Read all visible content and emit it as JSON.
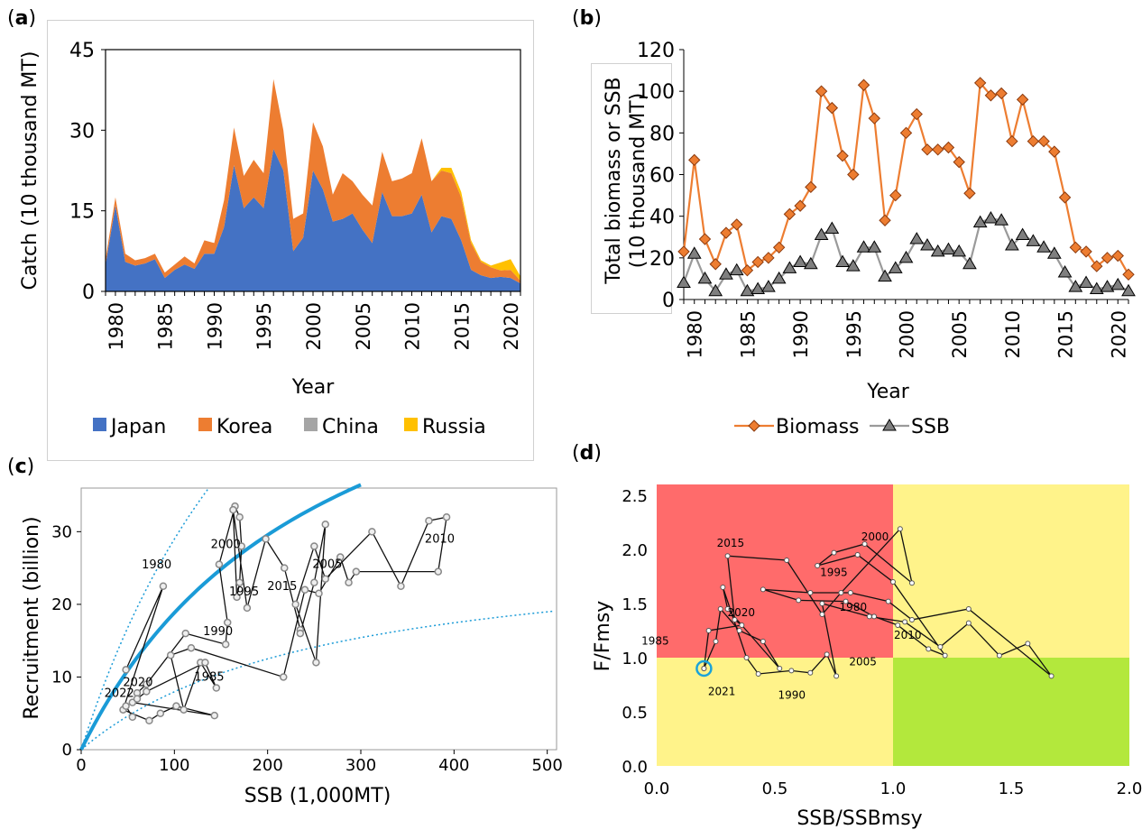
{
  "panels": {
    "a": {
      "label": "a"
    },
    "b": {
      "label": "b"
    },
    "c": {
      "label": "c"
    },
    "d": {
      "label": "d"
    }
  },
  "chart_data": [
    {
      "id": "a",
      "type": "area",
      "stacked": true,
      "xlabel": "Year",
      "ylabel": "Catch (10 thousand MT)",
      "ylim": [
        0,
        45
      ],
      "yticks": [
        0,
        15,
        30,
        45
      ],
      "xticks": [
        1980,
        1985,
        1990,
        1995,
        2000,
        2005,
        2010,
        2015,
        2020
      ],
      "legend_position": "bottom",
      "x": [
        1979,
        1980,
        1981,
        1982,
        1983,
        1984,
        1985,
        1986,
        1987,
        1988,
        1989,
        1990,
        1991,
        1992,
        1993,
        1994,
        1995,
        1996,
        1997,
        1998,
        1999,
        2000,
        2001,
        2002,
        2003,
        2004,
        2005,
        2006,
        2007,
        2008,
        2009,
        2010,
        2011,
        2012,
        2013,
        2014,
        2015,
        2016,
        2017,
        2018,
        2019,
        2020,
        2021
      ],
      "series": [
        {
          "name": "Japan",
          "color": "#4472C4",
          "values": [
            5,
            16,
            5.5,
            4.8,
            5.2,
            6,
            2.5,
            4,
            5,
            4.2,
            7,
            7,
            12,
            23.5,
            15.5,
            17.5,
            15.5,
            26.5,
            22.5,
            7.5,
            10,
            22.5,
            19,
            13,
            13.5,
            14.5,
            11.5,
            9,
            18.5,
            14,
            14,
            14.5,
            18,
            11,
            14,
            13.5,
            9.5,
            4,
            3,
            2.5,
            2.7,
            2.5,
            1.5
          ]
        },
        {
          "name": "Korea",
          "color": "#ED7D31",
          "values": [
            1,
            1.5,
            1.5,
            1,
            1,
            1,
            1,
            1,
            1.5,
            1,
            2.5,
            2,
            5,
            7,
            6,
            7,
            6.5,
            13,
            7.5,
            6,
            4.5,
            9,
            8,
            5,
            8.5,
            6,
            6.5,
            7,
            7.5,
            6.5,
            7,
            7.5,
            10.5,
            9.5,
            8.5,
            8.5,
            8,
            5,
            2.5,
            2,
            1.2,
            1.5,
            0.5
          ]
        },
        {
          "name": "China",
          "color": "#A5A5A5",
          "values": [
            0,
            0,
            0,
            0,
            0,
            0,
            0,
            0,
            0,
            0,
            0,
            0,
            0,
            0,
            0,
            0,
            0,
            0,
            0,
            0,
            0,
            0,
            0,
            0,
            0,
            0,
            0,
            0,
            0,
            0,
            0,
            0,
            0,
            0,
            0,
            0,
            0,
            0,
            0,
            0,
            0,
            0,
            0
          ]
        },
        {
          "name": "Russia",
          "color": "#FFC000",
          "values": [
            0,
            0,
            0,
            0,
            0,
            0,
            0,
            0,
            0,
            0,
            0,
            0,
            0,
            0,
            0,
            0,
            0,
            0,
            0,
            0,
            0,
            0,
            0,
            0,
            0,
            0,
            0,
            0,
            0,
            0,
            0,
            0,
            0,
            0,
            0.5,
            1,
            1,
            0.5,
            0.3,
            0.3,
            1.5,
            2,
            0.8
          ]
        }
      ]
    },
    {
      "id": "b",
      "type": "line",
      "xlabel": "Year",
      "ylabel": "Total biomass or SSB (10 thousand MT)",
      "ylim": [
        0,
        120
      ],
      "yticks": [
        0,
        20,
        40,
        60,
        80,
        100,
        120
      ],
      "xticks": [
        1980,
        1985,
        1990,
        1995,
        2000,
        2005,
        2010,
        2015,
        2020
      ],
      "legend_position": "bottom",
      "x": [
        1979,
        1980,
        1981,
        1982,
        1983,
        1984,
        1985,
        1986,
        1987,
        1988,
        1989,
        1990,
        1991,
        1992,
        1993,
        1994,
        1995,
        1996,
        1997,
        1998,
        1999,
        2000,
        2001,
        2002,
        2003,
        2004,
        2005,
        2006,
        2007,
        2008,
        2009,
        2010,
        2011,
        2012,
        2013,
        2014,
        2015,
        2016,
        2017,
        2018,
        2019,
        2020,
        2021
      ],
      "series": [
        {
          "name": "Biomass",
          "color": "#ED7D31",
          "marker": "diamond",
          "values": [
            23,
            67,
            29,
            17,
            32,
            36,
            14,
            18,
            20,
            25,
            41,
            45,
            54,
            100,
            92,
            69,
            60,
            103,
            87,
            38,
            50,
            80,
            89,
            72,
            72,
            73,
            66,
            51,
            104,
            98,
            99,
            76,
            96,
            76,
            76,
            71,
            49,
            25,
            23,
            16,
            20,
            21,
            12
          ]
        },
        {
          "name": "SSB",
          "color": "#7F7F7F",
          "marker": "triangle",
          "values": [
            8,
            22,
            10,
            4,
            12,
            14,
            4,
            5,
            6,
            10,
            15,
            18,
            17,
            31,
            34,
            18,
            16,
            25,
            25,
            11,
            15,
            20,
            29,
            26,
            23,
            24,
            23,
            17,
            37,
            39,
            38,
            26,
            31,
            28,
            25,
            22,
            13,
            6,
            8,
            5,
            6,
            7,
            4
          ]
        }
      ]
    },
    {
      "id": "c",
      "type": "scatter",
      "connected": true,
      "xlabel": "SSB (1,000MT)",
      "ylabel": "Recruitment (billion)",
      "xlim": [
        0,
        510
      ],
      "ylim": [
        0,
        36
      ],
      "xticks": [
        0,
        100,
        200,
        300,
        400,
        500
      ],
      "yticks": [
        0,
        10,
        20,
        30
      ],
      "curve": {
        "name": "stock-recruitment curve",
        "color": "#1A9BD7",
        "a": 0.26,
        "b": 0.0038
      },
      "upper_bound": {
        "a": 0.4,
        "b": 0.0038
      },
      "lower_bound": {
        "a": 0.11,
        "b": 0.0038
      },
      "year_labels": [
        {
          "text": "1980",
          "x": 92,
          "y": 22.5
        },
        {
          "text": "1985",
          "x": 133,
          "y": 8.5
        },
        {
          "text": "1990",
          "x": 152,
          "y": 14.5
        },
        {
          "text": "1995",
          "x": 180,
          "y": 19.5
        },
        {
          "text": "2000",
          "x": 170,
          "y": 26
        },
        {
          "text": "2005",
          "x": 250,
          "y": 23
        },
        {
          "text": "2010",
          "x": 388,
          "y": 25
        },
        {
          "text": "2015",
          "x": 248,
          "y": 21.5
        },
        {
          "text": "2020",
          "x": 72,
          "y": 8
        },
        {
          "text": "2022",
          "x": 50,
          "y": 6.5
        }
      ],
      "points": [
        [
          48,
          11
        ],
        [
          88,
          22.5
        ],
        [
          45,
          5.5
        ],
        [
          73,
          4
        ],
        [
          85,
          5
        ],
        [
          102,
          6
        ],
        [
          143,
          4.7
        ],
        [
          55,
          6.5
        ],
        [
          60,
          7.8
        ],
        [
          70,
          9
        ],
        [
          112,
          16
        ],
        [
          155,
          14.5
        ],
        [
          157,
          17.5
        ],
        [
          148,
          25.5
        ],
        [
          165,
          33.5
        ],
        [
          170,
          32
        ],
        [
          172,
          28
        ],
        [
          170,
          23
        ],
        [
          167,
          21
        ],
        [
          163,
          33
        ],
        [
          178,
          19.5
        ],
        [
          198,
          29
        ],
        [
          218,
          25
        ],
        [
          235,
          16.5
        ],
        [
          235,
          16
        ],
        [
          250,
          23
        ],
        [
          262,
          31
        ],
        [
          252,
          12
        ],
        [
          230,
          20
        ],
        [
          250,
          28
        ],
        [
          262,
          23.5
        ],
        [
          312,
          30
        ],
        [
          343,
          22.5
        ],
        [
          373,
          31.5
        ],
        [
          392,
          32
        ],
        [
          383,
          24.5
        ],
        [
          295,
          24.5
        ],
        [
          287,
          23
        ],
        [
          278,
          26.5
        ],
        [
          255,
          21.5
        ],
        [
          240,
          22
        ],
        [
          217,
          10
        ],
        [
          118,
          14
        ],
        [
          96,
          13
        ],
        [
          110,
          5.5
        ],
        [
          128,
          12
        ],
        [
          145,
          8.5
        ],
        [
          133,
          12
        ],
        [
          70,
          8
        ],
        [
          60,
          7
        ],
        [
          48,
          6
        ],
        [
          55,
          4.5
        ]
      ]
    },
    {
      "id": "d",
      "type": "scatter",
      "connected": true,
      "xlabel": "SSB/SSBmsy",
      "ylabel": "F/Fmsy",
      "xlim": [
        0,
        2
      ],
      "ylim": [
        0,
        2.6
      ],
      "xticks": [
        "0.0",
        "0.5",
        "1.0",
        "1.5",
        "2.0"
      ],
      "yticks": [
        "0.0",
        "0.5",
        "1.0",
        "1.5",
        "2.0",
        "2.5"
      ],
      "quadrants": {
        "overfished_overfishing": "#FF6B6B",
        "ok_overfishing": "#FFF38A",
        "overfished_ok": "#FFF38A",
        "ok_ok": "#B3E83C"
      },
      "year_labels": [
        {
          "text": "1980",
          "x": 0.88,
          "y": 1.41
        },
        {
          "text": "1985",
          "x": 0.05,
          "y": 1.07
        },
        {
          "text": "1990",
          "x": 0.62,
          "y": 0.77
        },
        {
          "text": "1995",
          "x": 0.76,
          "y": 1.72
        },
        {
          "text": "2000",
          "x": 0.98,
          "y": 2.05
        },
        {
          "text": "2005",
          "x": 0.86,
          "y": 1.08
        },
        {
          "text": "2010",
          "x": 1.08,
          "y": 1.29
        },
        {
          "text": "2015",
          "x": 0.43,
          "y": 1.99
        },
        {
          "text": "2020",
          "x": 0.33,
          "y": 1.36
        },
        {
          "text": "2021",
          "x": 0.24,
          "y": 0.77
        }
      ],
      "highlight": {
        "x": 0.2,
        "y": 0.9,
        "color": "#1AA3D9"
      },
      "points": [
        [
          0.2,
          0.9
        ],
        [
          0.25,
          1.15
        ],
        [
          0.27,
          1.45
        ],
        [
          0.35,
          1.25
        ],
        [
          0.45,
          1.15
        ],
        [
          0.52,
          0.9
        ],
        [
          0.3,
          1.45
        ],
        [
          0.28,
          1.65
        ],
        [
          0.38,
          1.0
        ],
        [
          0.43,
          0.85
        ],
        [
          0.57,
          0.88
        ],
        [
          0.65,
          0.86
        ],
        [
          0.72,
          1.03
        ],
        [
          0.76,
          0.83
        ],
        [
          0.7,
          1.5
        ],
        [
          0.9,
          1.38
        ],
        [
          1.05,
          1.33
        ],
        [
          1.2,
          1.1
        ],
        [
          1.32,
          1.32
        ],
        [
          1.45,
          1.02
        ],
        [
          1.57,
          1.13
        ],
        [
          1.67,
          0.83
        ],
        [
          1.32,
          1.45
        ],
        [
          1.08,
          1.35
        ],
        [
          0.98,
          1.52
        ],
        [
          0.82,
          1.6
        ],
        [
          0.65,
          1.6
        ],
        [
          0.45,
          1.63
        ],
        [
          0.6,
          1.53
        ],
        [
          0.8,
          1.52
        ],
        [
          0.92,
          1.38
        ],
        [
          1.02,
          1.3
        ],
        [
          1.15,
          1.08
        ],
        [
          1.22,
          1.02
        ],
        [
          1.0,
          1.7
        ],
        [
          0.85,
          1.95
        ],
        [
          0.68,
          1.85
        ],
        [
          0.75,
          1.97
        ],
        [
          0.88,
          2.05
        ],
        [
          1.08,
          1.69
        ],
        [
          1.03,
          2.19
        ],
        [
          0.78,
          1.6
        ],
        [
          0.7,
          1.4
        ],
        [
          0.55,
          1.9
        ],
        [
          0.3,
          1.94
        ],
        [
          0.33,
          1.35
        ],
        [
          0.36,
          1.3
        ],
        [
          0.22,
          1.25
        ],
        [
          0.2,
          0.9
        ]
      ]
    }
  ]
}
